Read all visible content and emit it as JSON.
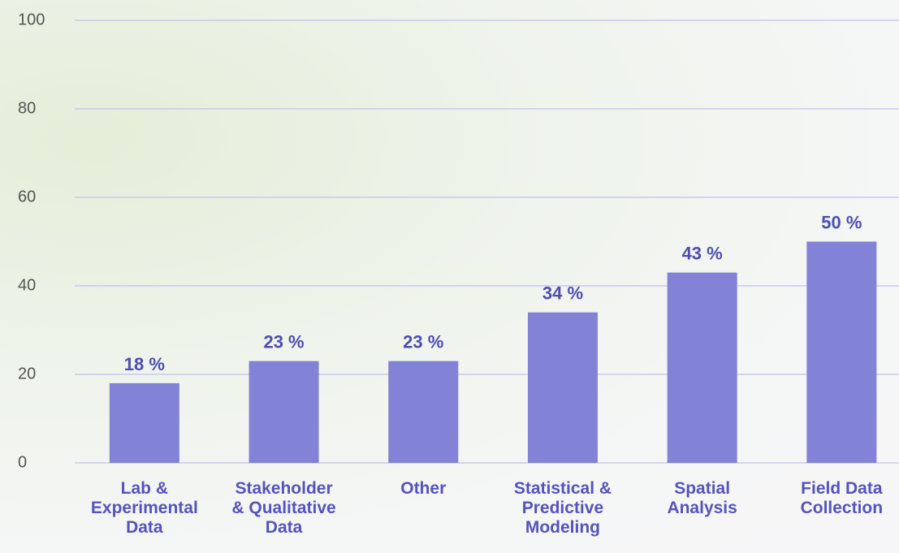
{
  "chart_data": {
    "type": "bar",
    "categories": [
      "Lab &\nExperimental\nData",
      "Stakeholder\n& Qualitative\nData",
      "Other",
      "Statistical &\nPredictive\nModeling",
      "Spatial\nAnalysis",
      "Field Data\nCollection"
    ],
    "values": [
      18,
      23,
      23,
      34,
      43,
      50
    ],
    "value_labels": [
      "18 %",
      "23 %",
      "23 %",
      "34 %",
      "43 %",
      "50 %"
    ],
    "color": "#8282d6",
    "ylim": [
      0,
      100
    ],
    "yticks": [
      0,
      20,
      40,
      60,
      80,
      100
    ],
    "grid": true
  }
}
